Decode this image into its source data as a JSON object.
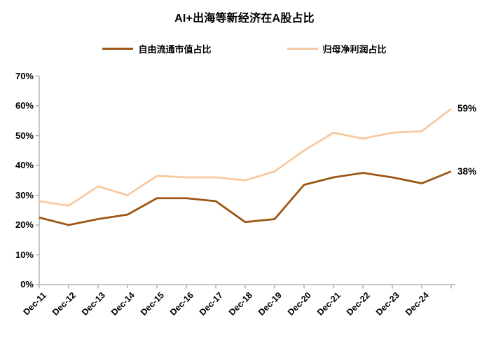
{
  "title": "AI+出海等新经济在A股占比",
  "legend": {
    "items": [
      {
        "label": "自由流通市值占比",
        "color": "#9D5614"
      },
      {
        "label": "归母净利润占比",
        "color": "#F8C9A0"
      }
    ]
  },
  "axis_color": "#A6A6A6",
  "chart_data": {
    "type": "line",
    "title": "AI+出海等新经济在A股占比",
    "categories": [
      "Dec-11",
      "Dec-12",
      "Dec-13",
      "Dec-14",
      "Dec-15",
      "Dec-16",
      "Dec-17",
      "Dec-18",
      "Dec-19",
      "Dec-20",
      "Dec-21",
      "Dec-22",
      "Dec-23",
      "Dec-24",
      ""
    ],
    "series": [
      {
        "name": "自由流通市值占比",
        "color": "#9D5614",
        "values": [
          22.5,
          20,
          22,
          23.5,
          29,
          29,
          28,
          21,
          22,
          33.5,
          36,
          37.5,
          36,
          34,
          38
        ],
        "end_label": "38%"
      },
      {
        "name": "归母净利润占比",
        "color": "#F8C9A0",
        "values": [
          28,
          26.5,
          33,
          30,
          36.5,
          36,
          36,
          35,
          38,
          45,
          51,
          49,
          51,
          51.5,
          59
        ],
        "end_label": "59%"
      }
    ],
    "xlabel": "",
    "ylabel": "",
    "ylim": [
      0,
      70
    ],
    "y_tick_step": 10,
    "y_ticks": [
      "0%",
      "10%",
      "20%",
      "30%",
      "40%",
      "50%",
      "60%",
      "70%"
    ],
    "grid": false,
    "legend_position": "top"
  }
}
